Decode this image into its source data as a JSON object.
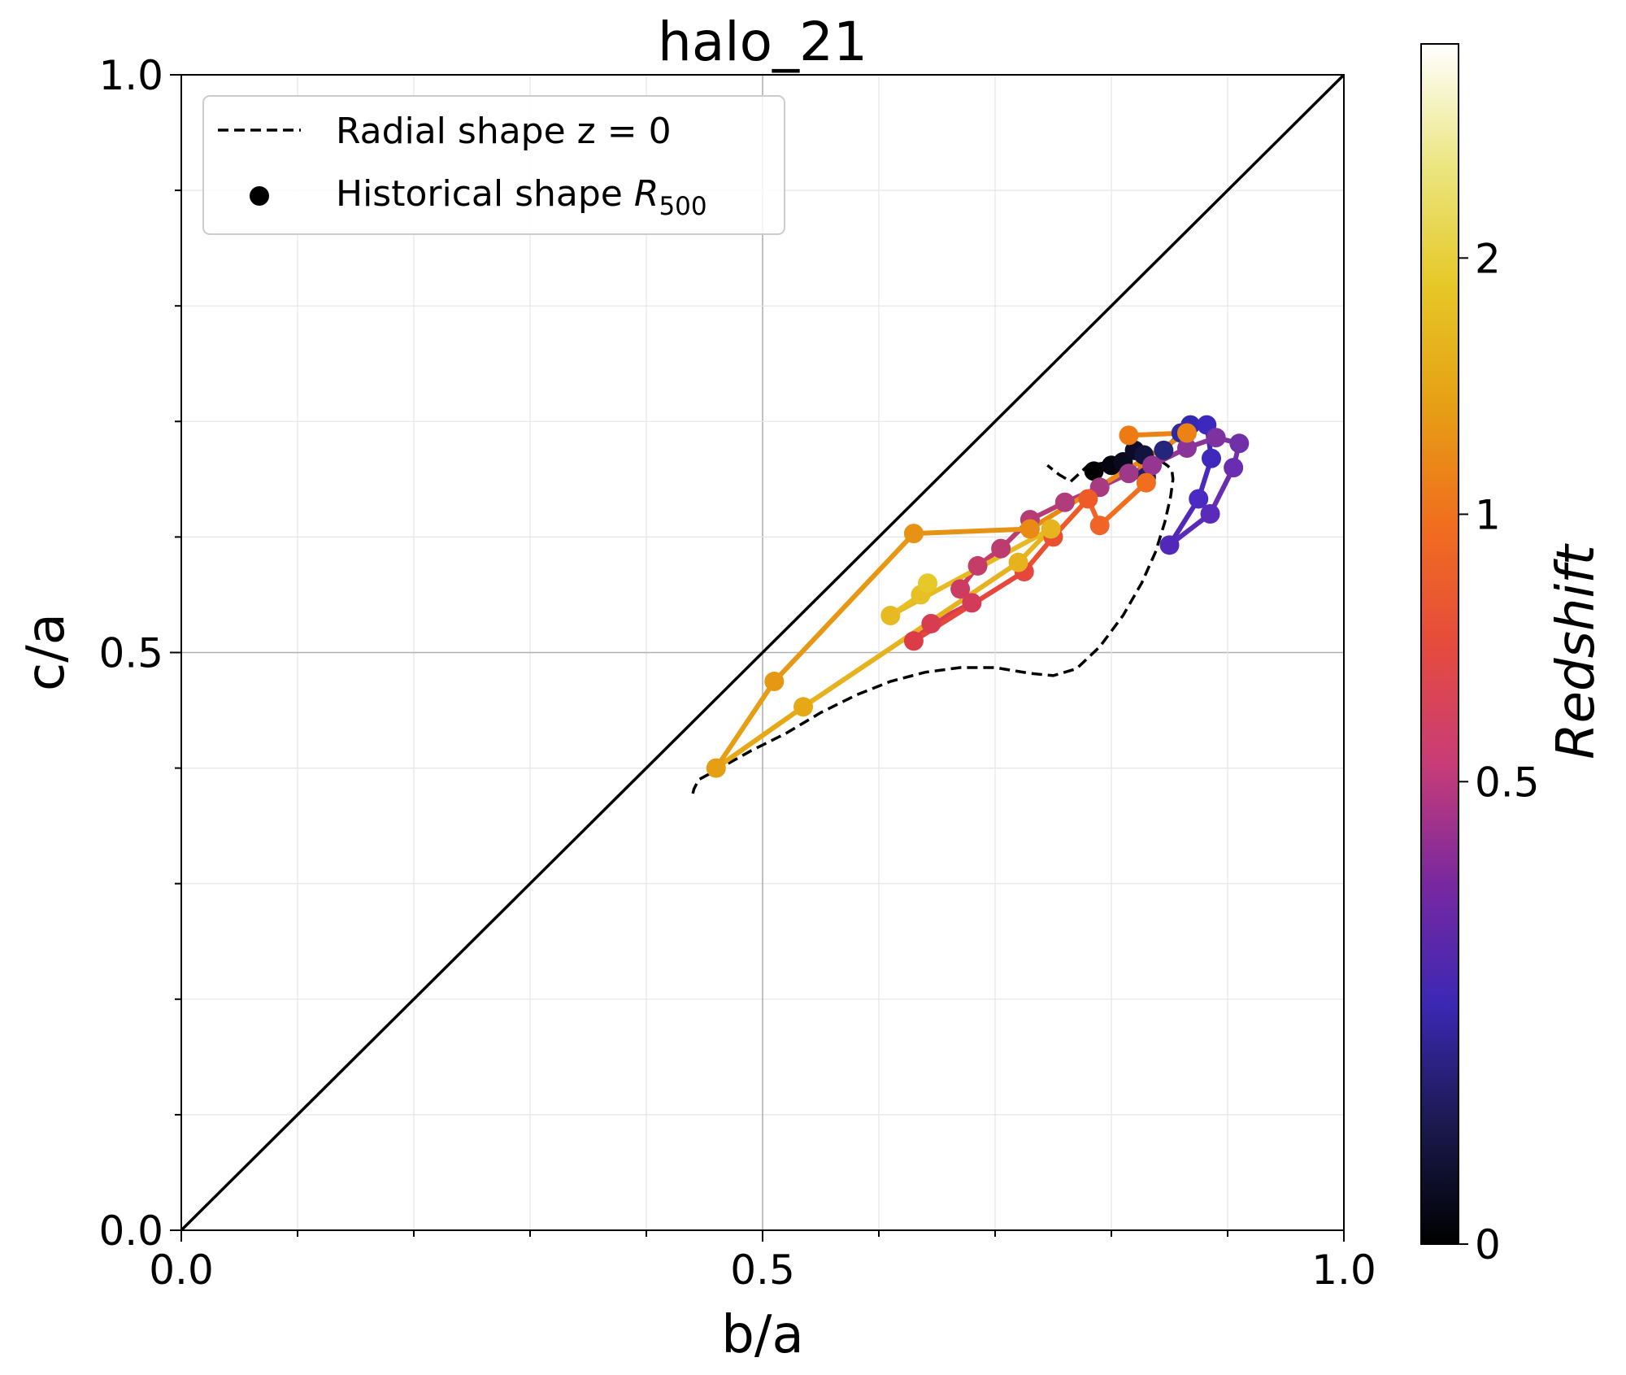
{
  "chart_data": {
    "type": "scatter",
    "title": "halo_21",
    "xlabel": "b/a",
    "ylabel": "c/a",
    "xlim": [
      0.0,
      1.0
    ],
    "ylim": [
      0.0,
      1.0
    ],
    "x_ticks": [
      "0.0",
      "0.5",
      "1.0"
    ],
    "y_ticks": [
      "0.0",
      "0.5",
      "1.0"
    ],
    "grid": true,
    "legend_position": "top-left",
    "legend": [
      {
        "name": "Radial shape z = 0",
        "style": "dashed-line",
        "color": "#000000"
      },
      {
        "name": "Historical shape R_500",
        "label_main": "Historical shape ",
        "label_math": "R",
        "label_sub": "500",
        "style": "marker",
        "color": "#000000"
      }
    ],
    "colorbar": {
      "label": "Redshift",
      "ticks": [
        "0",
        "0.5",
        "1",
        "2"
      ],
      "colormap": "CMRmap-like",
      "stops": [
        "#000000",
        "#1a1a50",
        "#3c28b4",
        "#7828a0",
        "#c83c78",
        "#e64b3c",
        "#f06e1e",
        "#e6a014",
        "#e6c828",
        "#ebe682",
        "#ffffff"
      ]
    },
    "identity_line": {
      "x": [
        0.0,
        1.0
      ],
      "y": [
        0.0,
        1.0
      ],
      "color": "#000000"
    },
    "radial_shape_z0": {
      "x": [
        0.44,
        0.441,
        0.443,
        0.445,
        0.46,
        0.49,
        0.52,
        0.55,
        0.58,
        0.61,
        0.64,
        0.67,
        0.7,
        0.73,
        0.75,
        0.77,
        0.79,
        0.81,
        0.826,
        0.838,
        0.846,
        0.851,
        0.853,
        0.852,
        0.848,
        0.842,
        0.836,
        0.82,
        0.8,
        0.78,
        0.765,
        0.755,
        0.745
      ],
      "y": [
        0.378,
        0.382,
        0.386,
        0.39,
        0.398,
        0.415,
        0.43,
        0.448,
        0.463,
        0.475,
        0.483,
        0.487,
        0.487,
        0.482,
        0.48,
        0.486,
        0.505,
        0.532,
        0.56,
        0.587,
        0.613,
        0.635,
        0.65,
        0.658,
        0.662,
        0.666,
        0.668,
        0.669,
        0.665,
        0.662,
        0.648,
        0.654,
        0.662
      ]
    },
    "historical_shape_R500": {
      "points": [
        {
          "x": 0.785,
          "y": 0.657,
          "color": "#000000"
        },
        {
          "x": 0.8,
          "y": 0.662,
          "color": "#050510"
        },
        {
          "x": 0.81,
          "y": 0.665,
          "color": "#0a0a1e"
        },
        {
          "x": 0.82,
          "y": 0.675,
          "color": "#0c0c28"
        },
        {
          "x": 0.828,
          "y": 0.671,
          "color": "#121440"
        },
        {
          "x": 0.83,
          "y": 0.652,
          "color": "#1c2064"
        },
        {
          "x": 0.845,
          "y": 0.675,
          "color": "#23267a"
        },
        {
          "x": 0.86,
          "y": 0.69,
          "color": "#2e2a9e"
        },
        {
          "x": 0.868,
          "y": 0.697,
          "color": "#3328b0"
        },
        {
          "x": 0.882,
          "y": 0.697,
          "color": "#3c28be"
        },
        {
          "x": 0.886,
          "y": 0.668,
          "color": "#3e29bc"
        },
        {
          "x": 0.875,
          "y": 0.633,
          "color": "#4a2ac0"
        },
        {
          "x": 0.85,
          "y": 0.593,
          "color": "#5228b8"
        },
        {
          "x": 0.885,
          "y": 0.62,
          "color": "#5a2ab8"
        },
        {
          "x": 0.905,
          "y": 0.66,
          "color": "#6a2cb0"
        },
        {
          "x": 0.91,
          "y": 0.681,
          "color": "#7030a8"
        },
        {
          "x": 0.89,
          "y": 0.686,
          "color": "#7e32a0"
        },
        {
          "x": 0.865,
          "y": 0.677,
          "color": "#8a349a"
        },
        {
          "x": 0.835,
          "y": 0.662,
          "color": "#963690"
        },
        {
          "x": 0.815,
          "y": 0.655,
          "color": "#9e3888"
        },
        {
          "x": 0.79,
          "y": 0.643,
          "color": "#a83a82"
        },
        {
          "x": 0.76,
          "y": 0.63,
          "color": "#b03c7c"
        },
        {
          "x": 0.73,
          "y": 0.615,
          "color": "#b63c76"
        },
        {
          "x": 0.705,
          "y": 0.59,
          "color": "#bc3c70"
        },
        {
          "x": 0.685,
          "y": 0.575,
          "color": "#c43c68"
        },
        {
          "x": 0.67,
          "y": 0.555,
          "color": "#cc3c62"
        },
        {
          "x": 0.68,
          "y": 0.543,
          "color": "#d23c58"
        },
        {
          "x": 0.645,
          "y": 0.525,
          "color": "#d83c50"
        },
        {
          "x": 0.63,
          "y": 0.51,
          "color": "#dc3c48"
        },
        {
          "x": 0.725,
          "y": 0.57,
          "color": "#e6463c"
        },
        {
          "x": 0.75,
          "y": 0.6,
          "color": "#ea5030"
        },
        {
          "x": 0.78,
          "y": 0.633,
          "color": "#ee5a28"
        },
        {
          "x": 0.79,
          "y": 0.61,
          "color": "#f06428"
        },
        {
          "x": 0.83,
          "y": 0.647,
          "color": "#f06e1e"
        },
        {
          "x": 0.815,
          "y": 0.688,
          "color": "#ee7a14"
        },
        {
          "x": 0.865,
          "y": 0.69,
          "color": "#ec8214"
        },
        {
          "x": 0.73,
          "y": 0.607,
          "color": "#e88a14"
        },
        {
          "x": 0.63,
          "y": 0.603,
          "color": "#e69214"
        },
        {
          "x": 0.51,
          "y": 0.475,
          "color": "#e69814"
        },
        {
          "x": 0.46,
          "y": 0.4,
          "color": "#e69e14"
        },
        {
          "x": 0.535,
          "y": 0.453,
          "color": "#e6a814"
        },
        {
          "x": 0.72,
          "y": 0.578,
          "color": "#e6b21e"
        },
        {
          "x": 0.748,
          "y": 0.607,
          "color": "#e6b41e"
        },
        {
          "x": 0.61,
          "y": 0.532,
          "color": "#e6ba20"
        },
        {
          "x": 0.636,
          "y": 0.55,
          "color": "#e6c024"
        },
        {
          "x": 0.642,
          "y": 0.56,
          "color": "#e6c828"
        }
      ]
    }
  }
}
